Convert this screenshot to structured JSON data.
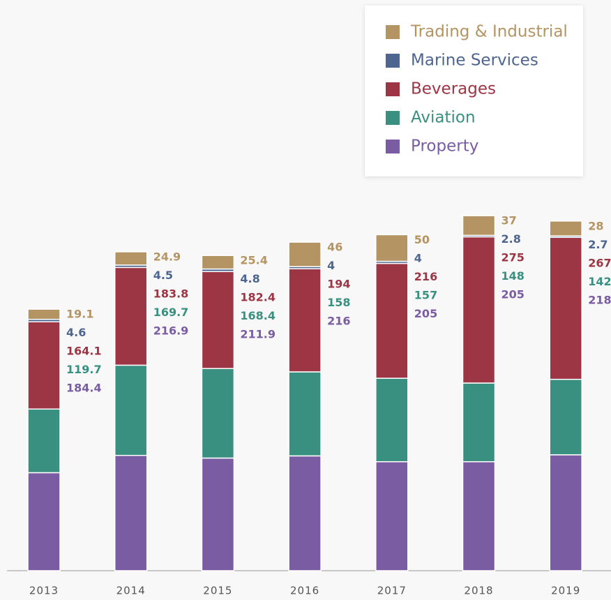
{
  "chart_data": {
    "type": "stacked_bar",
    "categories": [
      "2013",
      "2014",
      "2015",
      "2016",
      "2017",
      "2018",
      "2019"
    ],
    "series": [
      {
        "name": "Property",
        "color": "#7a5ca3",
        "values": [
          184.4,
          216.9,
          211.9,
          216,
          205,
          205,
          218
        ]
      },
      {
        "name": "Aviation",
        "color": "#3a9080",
        "values": [
          119.7,
          169.7,
          168.4,
          158,
          157,
          148,
          142
        ]
      },
      {
        "name": "Beverages",
        "color": "#9c3544",
        "values": [
          164.1,
          183.8,
          182.4,
          194,
          216,
          275,
          267
        ]
      },
      {
        "name": "Marine Services",
        "color": "#4e6590",
        "values": [
          4.6,
          4.5,
          4.8,
          4,
          4,
          2.8,
          2.7
        ]
      },
      {
        "name": "Trading & Industrial",
        "color": "#b39462",
        "values": [
          19.1,
          24.9,
          25.4,
          46,
          50,
          37,
          28
        ]
      }
    ],
    "legend": "top-right"
  }
}
